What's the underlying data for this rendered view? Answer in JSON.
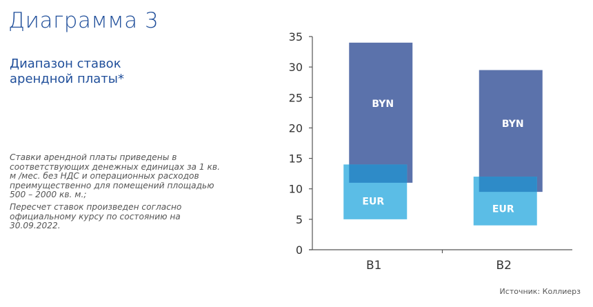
{
  "title": "Диаграмма 3",
  "subtitle": "Диапазон ставок арендной платы*",
  "notes": [
    "Ставки арендной платы приведены в соответствующих денежных единицах за 1  кв. м /мес. без НДС и операционных расходов преимущественно для помещений площадью 500 – 2000 кв. м.;",
    "Пересчет ставок произведен согласно официальному курсу по состоянию на 30.09.2022."
  ],
  "source": "Источник: Коллиерз",
  "chart_data": {
    "type": "bar",
    "subtype": "floating-range",
    "categories": [
      "B1",
      "B2"
    ],
    "series": [
      {
        "name": "BYN",
        "color": "#5b72ab",
        "ranges": [
          [
            11,
            34
          ],
          [
            9.5,
            29.5
          ]
        ]
      },
      {
        "name": "EUR",
        "color": "#5bbde6",
        "ranges": [
          [
            5,
            14
          ],
          [
            4,
            12
          ]
        ]
      }
    ],
    "overlap_color": "#2e8bc8",
    "ylim": [
      0,
      35
    ],
    "yticks": [
      "0",
      "5",
      "10",
      "15",
      "20",
      "25",
      "30",
      "35"
    ],
    "xlabel": "",
    "ylabel": "",
    "grid": false,
    "legend": "none"
  }
}
